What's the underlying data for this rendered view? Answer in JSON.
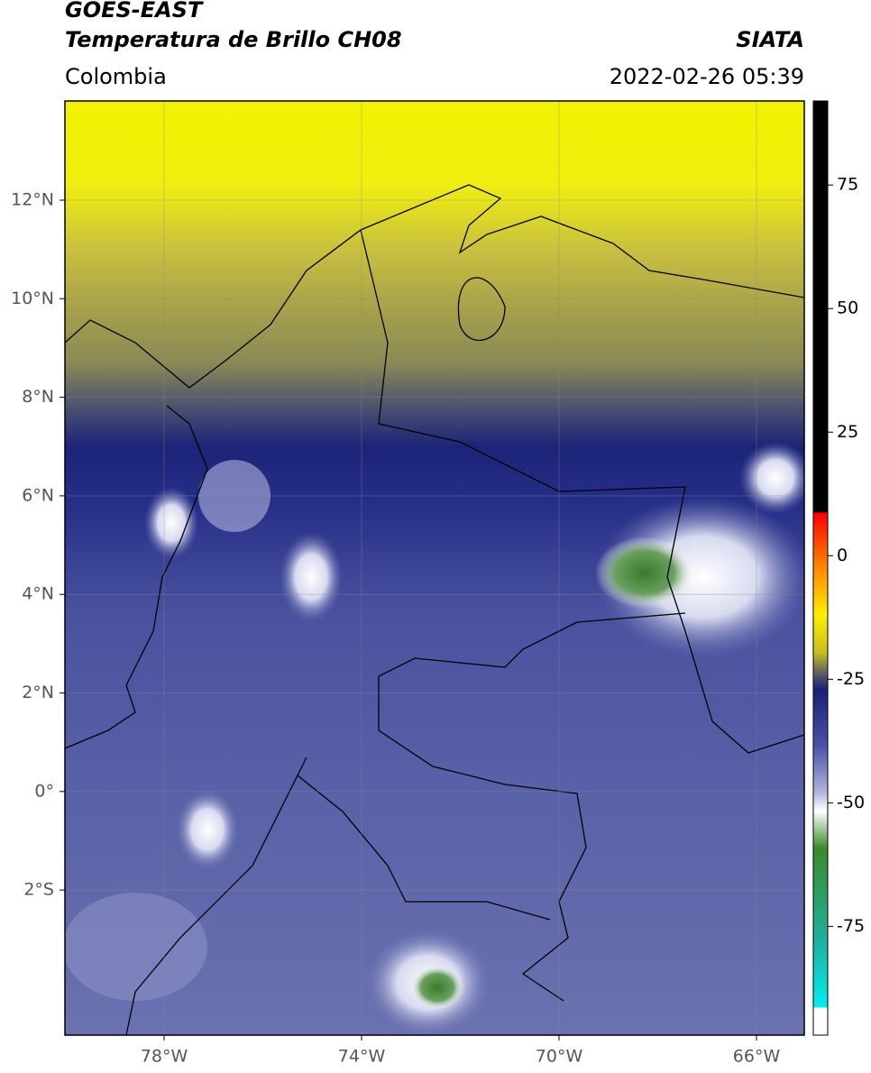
{
  "header": {
    "title_line1": "GOES-EAST",
    "title_line2": "Temperatura de Brillo CH08",
    "region": "Colombia",
    "source": "SIATA",
    "datetime": "2022-02-26 05:39"
  },
  "map": {
    "lat_labels": [
      "12°N",
      "10°N",
      "8°N",
      "6°N",
      "4°N",
      "2°N",
      "0°",
      "2°S"
    ],
    "lon_labels": [
      "78°W",
      "74°W",
      "70°W",
      "66°W"
    ]
  },
  "colorbar": {
    "range": [
      -97,
      92
    ],
    "ticks": [
      75,
      50,
      25,
      0,
      -25,
      -50,
      -75
    ]
  }
}
